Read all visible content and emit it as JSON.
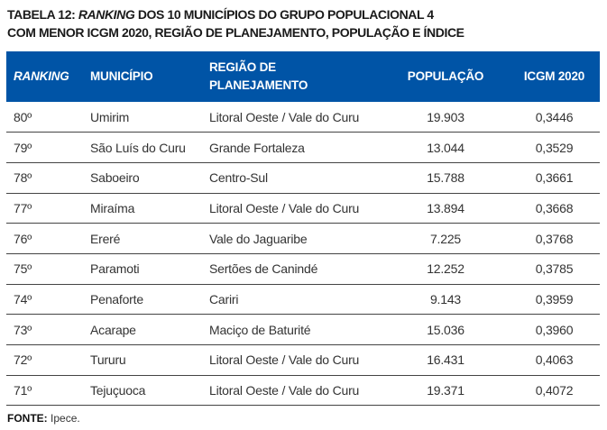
{
  "title": {
    "prefix": "TABELA 12: ",
    "italic": "RANKING",
    "rest1": " DOS 10 MUNICÍPIOS DO GRUPO POPULACIONAL 4",
    "line2": "COM MENOR ICGM 2020, REGIÃO DE PLANEJAMENTO, POPULAÇÃO E ÍNDICE"
  },
  "headers": {
    "ranking": "RANKING",
    "municipio": "MUNICÍPIO",
    "regiao1": "REGIÃO DE",
    "regiao2": "PLANEJAMENTO",
    "populacao": "POPULAÇÃO",
    "icgm": "ICGM 2020"
  },
  "rows": [
    {
      "rank": "80º",
      "mun": "Umirim",
      "reg": "Litoral Oeste / Vale do Curu",
      "pop": "19.903",
      "icgm": "0,3446"
    },
    {
      "rank": "79º",
      "mun": "São Luís do Curu",
      "reg": "Grande Fortaleza",
      "pop": "13.044",
      "icgm": "0,3529"
    },
    {
      "rank": "78º",
      "mun": "Saboeiro",
      "reg": "Centro-Sul",
      "pop": "15.788",
      "icgm": "0,3661"
    },
    {
      "rank": "77º",
      "mun": "Miraíma",
      "reg": "Litoral Oeste / Vale do Curu",
      "pop": "13.894",
      "icgm": "0,3668"
    },
    {
      "rank": "76º",
      "mun": "Ereré",
      "reg": "Vale do Jaguaribe",
      "pop": "7.225",
      "icgm": "0,3768"
    },
    {
      "rank": "75º",
      "mun": "Paramoti",
      "reg": "Sertões de Canindé",
      "pop": "12.252",
      "icgm": "0,3785"
    },
    {
      "rank": "74º",
      "mun": "Penaforte",
      "reg": "Cariri",
      "pop": "9.143",
      "icgm": "0,3959"
    },
    {
      "rank": "73º",
      "mun": "Acarape",
      "reg": "Maciço de Baturité",
      "pop": "15.036",
      "icgm": "0,3960"
    },
    {
      "rank": "72º",
      "mun": "Tururu",
      "reg": "Litoral Oeste / Vale do Curu",
      "pop": "16.431",
      "icgm": "0,4063"
    },
    {
      "rank": "71º",
      "mun": "Tejuçuoca",
      "reg": "Litoral Oeste / Vale do Curu",
      "pop": "19.371",
      "icgm": "0,4072"
    }
  ],
  "footer": {
    "label": "FONTE:",
    "source": " Ipece."
  }
}
